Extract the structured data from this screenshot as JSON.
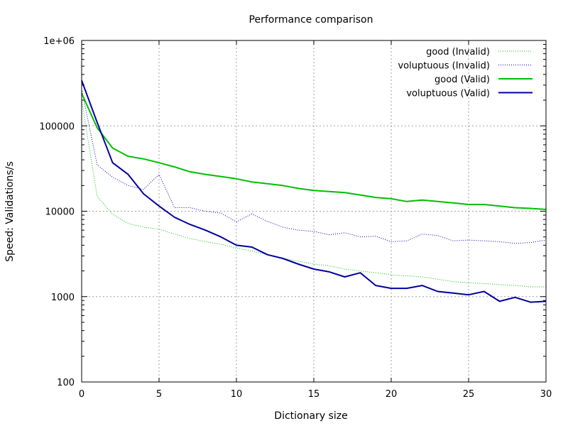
{
  "chart_data": {
    "type": "line",
    "title": "Performance comparison",
    "xlabel": "Dictionary size",
    "ylabel": "Speed: Validations/s",
    "xlim": [
      0,
      30
    ],
    "ylim": [
      100,
      1000000
    ],
    "yscale": "log",
    "grid": true,
    "legend_position": "top-right",
    "x_ticks": [
      0,
      5,
      10,
      15,
      20,
      25,
      30
    ],
    "y_ticks": [
      100,
      1000,
      10000,
      100000,
      1000000
    ],
    "y_tick_labels": [
      "100",
      "1000",
      "10000",
      "100000",
      "1e+06"
    ],
    "x": [
      0,
      1,
      2,
      3,
      4,
      5,
      6,
      7,
      8,
      9,
      10,
      11,
      12,
      13,
      14,
      15,
      16,
      17,
      18,
      19,
      20,
      21,
      22,
      23,
      24,
      25,
      26,
      27,
      28,
      29,
      30
    ],
    "series": [
      {
        "name": "good (Invalid)",
        "color": "#00c000",
        "style": "dotted",
        "values": [
          200000,
          15000,
          9200,
          7200,
          6500,
          6200,
          5400,
          4800,
          4400,
          4100,
          3700,
          3400,
          3100,
          2800,
          2600,
          2400,
          2300,
          2100,
          2000,
          1900,
          1800,
          1750,
          1700,
          1600,
          1500,
          1450,
          1420,
          1380,
          1350,
          1300,
          1300
        ]
      },
      {
        "name": "voluptuous (Invalid)",
        "color": "#0000a0",
        "style": "dotted",
        "values": [
          270000,
          35000,
          25000,
          20000,
          18000,
          27000,
          11000,
          11000,
          10000,
          9500,
          7500,
          9300,
          7600,
          6500,
          6000,
          5800,
          5300,
          5600,
          5000,
          5100,
          4400,
          4500,
          5400,
          5200,
          4500,
          4600,
          4500,
          4400,
          4200,
          4300,
          4600
        ]
      },
      {
        "name": "good (Valid)",
        "color": "#00c000",
        "style": "solid",
        "values": [
          240000,
          95000,
          55000,
          44000,
          41000,
          37000,
          33000,
          29000,
          27000,
          25500,
          24000,
          22000,
          21000,
          20000,
          18500,
          17500,
          17000,
          16500,
          15500,
          14500,
          14000,
          13000,
          13500,
          13000,
          12500,
          12000,
          12000,
          11500,
          11000,
          10800,
          10500
        ]
      },
      {
        "name": "voluptuous (Valid)",
        "color": "#0000a0",
        "style": "solid",
        "values": [
          340000,
          110000,
          37000,
          27000,
          16000,
          11500,
          8500,
          7000,
          6000,
          5000,
          4000,
          3800,
          3100,
          2800,
          2400,
          2100,
          1950,
          1700,
          1900,
          1350,
          1250,
          1250,
          1350,
          1150,
          1100,
          1050,
          1150,
          880,
          980,
          860,
          880
        ]
      }
    ]
  }
}
